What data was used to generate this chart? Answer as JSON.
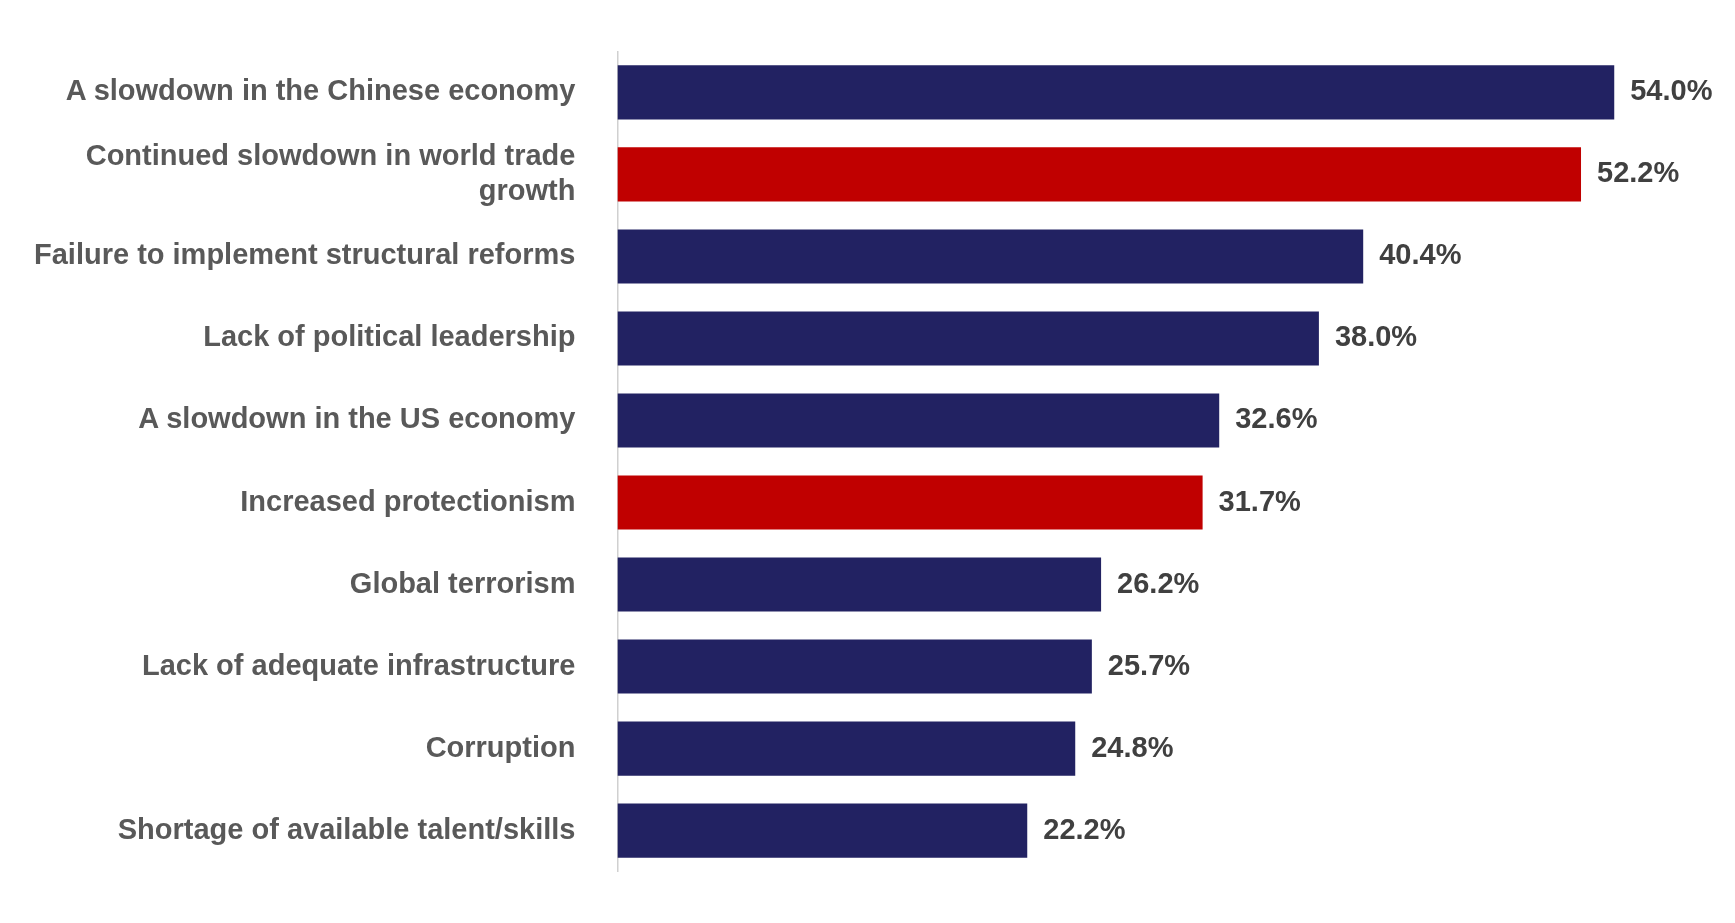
{
  "chart_data": {
    "type": "bar",
    "orientation": "horizontal",
    "grid": false,
    "legend": false,
    "categories": [
      "A slowdown in the Chinese economy",
      "Continued slowdown in world trade growth",
      "Failure to implement structural reforms",
      "Lack of political leadership",
      "A slowdown in the US economy",
      "Increased protectionism",
      "Global terrorism",
      "Lack of adequate infrastructure",
      "Corruption",
      "Shortage of available talent/skills"
    ],
    "values": [
      54.0,
      52.2,
      40.4,
      38.0,
      32.6,
      31.7,
      26.2,
      25.7,
      24.8,
      22.2
    ],
    "value_labels": [
      "54.0%",
      "52.2%",
      "40.4%",
      "38.0%",
      "32.6%",
      "31.7%",
      "26.2%",
      "25.7%",
      "24.8%",
      "22.2%"
    ],
    "colors": [
      "#222262",
      "#c00000",
      "#222262",
      "#222262",
      "#222262",
      "#c00000",
      "#222262",
      "#222262",
      "#222262",
      "#222262"
    ]
  }
}
